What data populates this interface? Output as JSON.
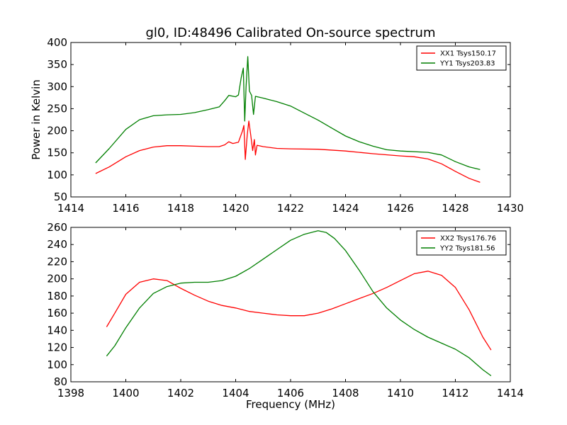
{
  "figure": {
    "title": "gl0, ID:48496 Calibrated On-source spectrum",
    "colors": {
      "XX": "#ff0000",
      "YY": "#007f00"
    }
  },
  "chart_data": [
    {
      "type": "line",
      "title": "gl0, ID:48496 Calibrated On-source spectrum",
      "xlabel": "",
      "ylabel": "Power in Kelvin",
      "xlim": [
        1414,
        1430
      ],
      "ylim": [
        50,
        400
      ],
      "xticks": [
        "1414",
        "1416",
        "1418",
        "1420",
        "1422",
        "1424",
        "1426",
        "1428",
        "1430"
      ],
      "yticks": [
        "50",
        "100",
        "150",
        "200",
        "250",
        "300",
        "350",
        "400"
      ],
      "legend_position": "top-right",
      "series": [
        {
          "name": "XX1 Tsys150.17",
          "color": "#ff0000",
          "points": [
            [
              1414.9,
              103
            ],
            [
              1415.4,
              118
            ],
            [
              1416.0,
              141
            ],
            [
              1416.5,
              155
            ],
            [
              1417.0,
              163
            ],
            [
              1417.5,
              166
            ],
            [
              1418.0,
              166
            ],
            [
              1418.5,
              165
            ],
            [
              1419.0,
              164
            ],
            [
              1419.4,
              164
            ],
            [
              1419.6,
              168
            ],
            [
              1419.75,
              175
            ],
            [
              1419.9,
              171
            ],
            [
              1420.1,
              174
            ],
            [
              1420.25,
              200
            ],
            [
              1420.3,
              212
            ],
            [
              1420.35,
              135
            ],
            [
              1420.42,
              190
            ],
            [
              1420.48,
              222
            ],
            [
              1420.55,
              190
            ],
            [
              1420.62,
              155
            ],
            [
              1420.68,
              180
            ],
            [
              1420.72,
              145
            ],
            [
              1420.78,
              167
            ],
            [
              1421.0,
              164
            ],
            [
              1421.5,
              160
            ],
            [
              1422.0,
              159
            ],
            [
              1423.0,
              158
            ],
            [
              1424.0,
              154
            ],
            [
              1424.5,
              151
            ],
            [
              1425.0,
              148
            ],
            [
              1426.0,
              143
            ],
            [
              1426.5,
              141
            ],
            [
              1427.0,
              136
            ],
            [
              1427.5,
              125
            ],
            [
              1428.0,
              108
            ],
            [
              1428.5,
              92
            ],
            [
              1428.9,
              83
            ]
          ]
        },
        {
          "name": "YY1 Tsys203.83",
          "color": "#007f00",
          "points": [
            [
              1414.9,
              127
            ],
            [
              1415.4,
              160
            ],
            [
              1416.0,
              203
            ],
            [
              1416.5,
              225
            ],
            [
              1417.0,
              234
            ],
            [
              1417.5,
              236
            ],
            [
              1418.0,
              237
            ],
            [
              1418.5,
              241
            ],
            [
              1419.0,
              248
            ],
            [
              1419.4,
              254
            ],
            [
              1419.6,
              268
            ],
            [
              1419.75,
              280
            ],
            [
              1420.0,
              277
            ],
            [
              1420.1,
              281
            ],
            [
              1420.2,
              320
            ],
            [
              1420.28,
              342
            ],
            [
              1420.33,
              222
            ],
            [
              1420.38,
              300
            ],
            [
              1420.44,
              368
            ],
            [
              1420.5,
              290
            ],
            [
              1420.58,
              280
            ],
            [
              1420.65,
              237
            ],
            [
              1420.72,
              278
            ],
            [
              1421.0,
              274
            ],
            [
              1421.5,
              266
            ],
            [
              1422.0,
              256
            ],
            [
              1422.5,
              240
            ],
            [
              1423.0,
              224
            ],
            [
              1423.5,
              206
            ],
            [
              1424.0,
              188
            ],
            [
              1424.5,
              175
            ],
            [
              1425.0,
              165
            ],
            [
              1425.5,
              157
            ],
            [
              1426.0,
              154
            ],
            [
              1427.0,
              151
            ],
            [
              1427.5,
              145
            ],
            [
              1428.0,
              130
            ],
            [
              1428.5,
              118
            ],
            [
              1428.9,
              112
            ]
          ]
        }
      ]
    },
    {
      "type": "line",
      "title": "",
      "xlabel": "Frequency (MHz)",
      "ylabel": "",
      "xlim": [
        1398,
        1414
      ],
      "ylim": [
        80,
        260
      ],
      "xticks": [
        "1398",
        "1400",
        "1402",
        "1404",
        "1406",
        "1408",
        "1410",
        "1412",
        "1414"
      ],
      "yticks": [
        "80",
        "100",
        "120",
        "140",
        "160",
        "180",
        "200",
        "220",
        "240",
        "260"
      ],
      "legend_position": "top-right",
      "series": [
        {
          "name": "XX2 Tsys176.76",
          "color": "#ff0000",
          "points": [
            [
              1399.3,
              144
            ],
            [
              1399.6,
              160
            ],
            [
              1400.0,
              182
            ],
            [
              1400.5,
              196
            ],
            [
              1401.0,
              200
            ],
            [
              1401.5,
              198
            ],
            [
              1402.0,
              189
            ],
            [
              1402.5,
              181
            ],
            [
              1403.0,
              174
            ],
            [
              1403.5,
              169
            ],
            [
              1404.0,
              166
            ],
            [
              1404.5,
              162
            ],
            [
              1405.0,
              160
            ],
            [
              1405.5,
              158
            ],
            [
              1406.0,
              157
            ],
            [
              1406.5,
              157
            ],
            [
              1407.0,
              160
            ],
            [
              1407.5,
              165
            ],
            [
              1408.0,
              171
            ],
            [
              1408.5,
              177
            ],
            [
              1409.0,
              183
            ],
            [
              1409.5,
              190
            ],
            [
              1410.0,
              198
            ],
            [
              1410.5,
              206
            ],
            [
              1411.0,
              209
            ],
            [
              1411.5,
              204
            ],
            [
              1412.0,
              190
            ],
            [
              1412.5,
              164
            ],
            [
              1413.0,
              132
            ],
            [
              1413.3,
              117
            ]
          ]
        },
        {
          "name": "YY2 Tsys181.56",
          "color": "#007f00",
          "points": [
            [
              1399.3,
              110
            ],
            [
              1399.6,
              122
            ],
            [
              1400.0,
              143
            ],
            [
              1400.5,
              166
            ],
            [
              1401.0,
              183
            ],
            [
              1401.5,
              191
            ],
            [
              1402.0,
              195
            ],
            [
              1402.5,
              196
            ],
            [
              1403.0,
              196
            ],
            [
              1403.5,
              198
            ],
            [
              1404.0,
              203
            ],
            [
              1404.5,
              212
            ],
            [
              1405.0,
              223
            ],
            [
              1405.5,
              234
            ],
            [
              1406.0,
              245
            ],
            [
              1406.5,
              252
            ],
            [
              1407.0,
              256
            ],
            [
              1407.3,
              254
            ],
            [
              1407.6,
              247
            ],
            [
              1408.0,
              233
            ],
            [
              1408.5,
              210
            ],
            [
              1409.0,
              185
            ],
            [
              1409.5,
              166
            ],
            [
              1410.0,
              152
            ],
            [
              1410.5,
              141
            ],
            [
              1411.0,
              132
            ],
            [
              1411.5,
              125
            ],
            [
              1412.0,
              118
            ],
            [
              1412.5,
              108
            ],
            [
              1413.0,
              94
            ],
            [
              1413.3,
              87
            ]
          ]
        }
      ]
    }
  ]
}
